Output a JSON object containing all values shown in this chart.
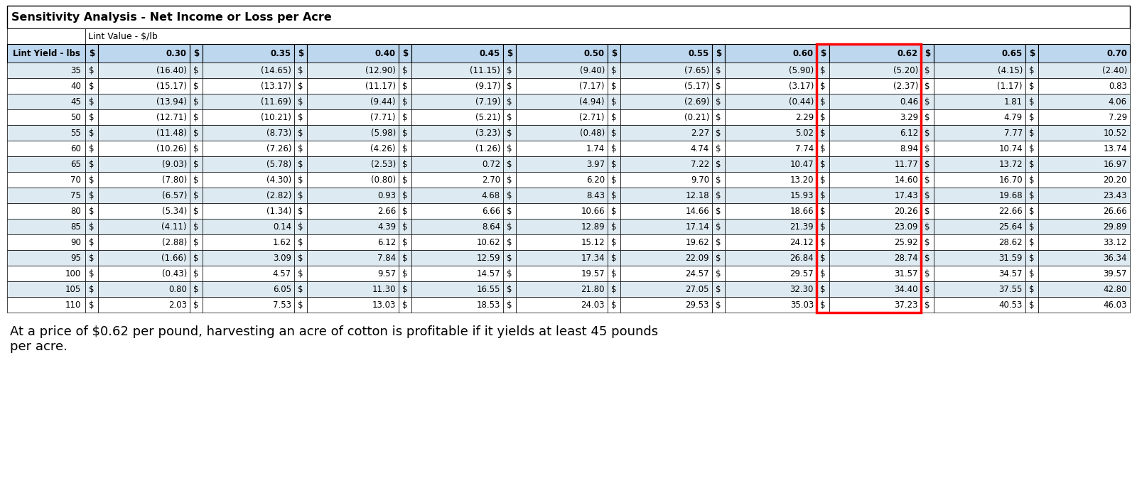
{
  "title": "Sensitivity Analysis - Net Income or Loss per Acre",
  "subtitle": "Lint Value - $/lb",
  "row_label": "Lint Yield - lbs",
  "lint_prices": [
    0.3,
    0.35,
    0.4,
    0.45,
    0.5,
    0.55,
    0.6,
    0.62,
    0.65,
    0.7
  ],
  "lint_yields": [
    35,
    40,
    45,
    50,
    55,
    60,
    65,
    70,
    75,
    80,
    85,
    90,
    95,
    100,
    105,
    110
  ],
  "values": [
    [
      -16.4,
      -14.65,
      -12.9,
      -11.15,
      -9.4,
      -7.65,
      -5.9,
      -5.2,
      -4.15,
      -2.4
    ],
    [
      -15.17,
      -13.17,
      -11.17,
      -9.17,
      -7.17,
      -5.17,
      -3.17,
      -2.37,
      -1.17,
      0.83
    ],
    [
      -13.94,
      -11.69,
      -9.44,
      -7.19,
      -4.94,
      -2.69,
      -0.44,
      0.46,
      1.81,
      4.06
    ],
    [
      -12.71,
      -10.21,
      -7.71,
      -5.21,
      -2.71,
      -0.21,
      2.29,
      3.29,
      4.79,
      7.29
    ],
    [
      -11.48,
      -8.73,
      -5.98,
      -3.23,
      -0.48,
      2.27,
      5.02,
      6.12,
      7.77,
      10.52
    ],
    [
      -10.26,
      -7.26,
      -4.26,
      -1.26,
      1.74,
      4.74,
      7.74,
      8.94,
      10.74,
      13.74
    ],
    [
      -9.03,
      -5.78,
      -2.53,
      0.72,
      3.97,
      7.22,
      10.47,
      11.77,
      13.72,
      16.97
    ],
    [
      -7.8,
      -4.3,
      -0.8,
      2.7,
      6.2,
      9.7,
      13.2,
      14.6,
      16.7,
      20.2
    ],
    [
      -6.57,
      -2.82,
      0.93,
      4.68,
      8.43,
      12.18,
      15.93,
      17.43,
      19.68,
      23.43
    ],
    [
      -5.34,
      -1.34,
      2.66,
      6.66,
      10.66,
      14.66,
      18.66,
      20.26,
      22.66,
      26.66
    ],
    [
      -4.11,
      0.14,
      4.39,
      8.64,
      12.89,
      17.14,
      21.39,
      23.09,
      25.64,
      29.89
    ],
    [
      -2.88,
      1.62,
      6.12,
      10.62,
      15.12,
      19.62,
      24.12,
      25.92,
      28.62,
      33.12
    ],
    [
      -1.66,
      3.09,
      7.84,
      12.59,
      17.34,
      22.09,
      26.84,
      28.74,
      31.59,
      36.34
    ],
    [
      -0.43,
      4.57,
      9.57,
      14.57,
      19.57,
      24.57,
      29.57,
      31.57,
      34.57,
      39.57
    ],
    [
      0.8,
      6.05,
      11.3,
      16.55,
      21.8,
      27.05,
      32.3,
      34.4,
      37.55,
      42.8
    ],
    [
      2.03,
      7.53,
      13.03,
      18.53,
      24.03,
      29.53,
      35.03,
      37.23,
      40.53,
      46.03
    ]
  ],
  "highlight_col_idx": 7,
  "caption": "At a price of $0.62 per pound, harvesting an acre of cotton is profitable if it yields at least 45 pounds\nper acre.",
  "header_bg": "#BDD7EE",
  "row_bg_even": "#DEEAF1",
  "row_bg_odd": "#FFFFFF",
  "highlight_border_color": "#FF0000"
}
